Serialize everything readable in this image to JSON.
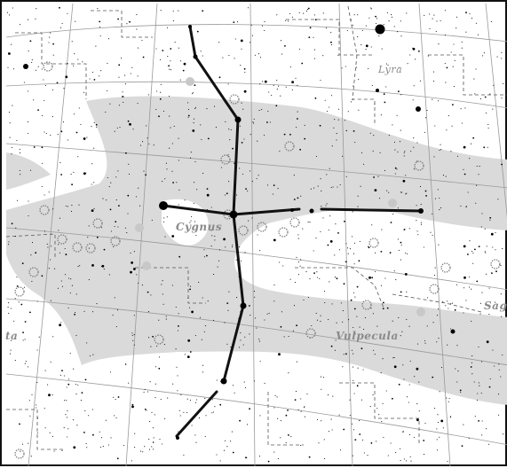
{
  "chart": {
    "labels": {
      "cygnus": "Cygnus",
      "vulpecula": "Vulpecula",
      "lyra": "Lyra",
      "sagitta_fragment": "Sag",
      "left_fragment": "ta"
    }
  },
  "colors": {
    "milky_way": "#d8d8d8",
    "grid": "#9a9a9a",
    "boundary": "#555555",
    "stick_figure": "#111111",
    "star": "#000000",
    "label": "#8a8a8a",
    "deep_sky_object": "#777777"
  }
}
